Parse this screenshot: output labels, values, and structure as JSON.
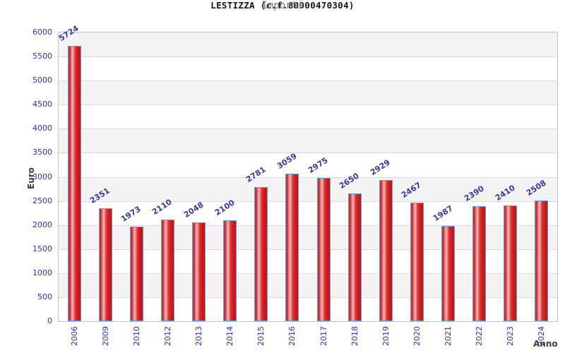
{
  "header": {
    "title": "LESTIZZA (c.f.80000470304)",
    "subtitle": "Importi"
  },
  "chart_data": {
    "type": "bar",
    "title": "LESTIZZA (c.f.80000470304)",
    "subtitle": "Importi",
    "xlabel": "Anno",
    "ylabel": "Euro",
    "categories": [
      "2006",
      "2009",
      "2010",
      "2012",
      "2013",
      "2014",
      "2015",
      "2016",
      "2017",
      "2018",
      "2019",
      "2020",
      "2021",
      "2022",
      "2023",
      "2024"
    ],
    "values": [
      5724,
      2351,
      1973,
      2110,
      2048,
      2100,
      2781,
      3059,
      2975,
      2650,
      2929,
      2467,
      1987,
      2390,
      2410,
      2508
    ],
    "ylim": [
      0,
      6000
    ],
    "ytick_step": 500,
    "grid": true,
    "legend_position": "none",
    "colors": {
      "bar_fill": "#e03131",
      "bar_border": "#5d9fe0",
      "value_label": "#3a3a9e",
      "tick_label": "#2e2ecc",
      "axis_title": "#3d3d3d",
      "band_gray": "#f3f3f3",
      "band_white": "#ffffff",
      "gridline": "#d9d9d9",
      "plot_border": "#c2c2c2"
    }
  }
}
